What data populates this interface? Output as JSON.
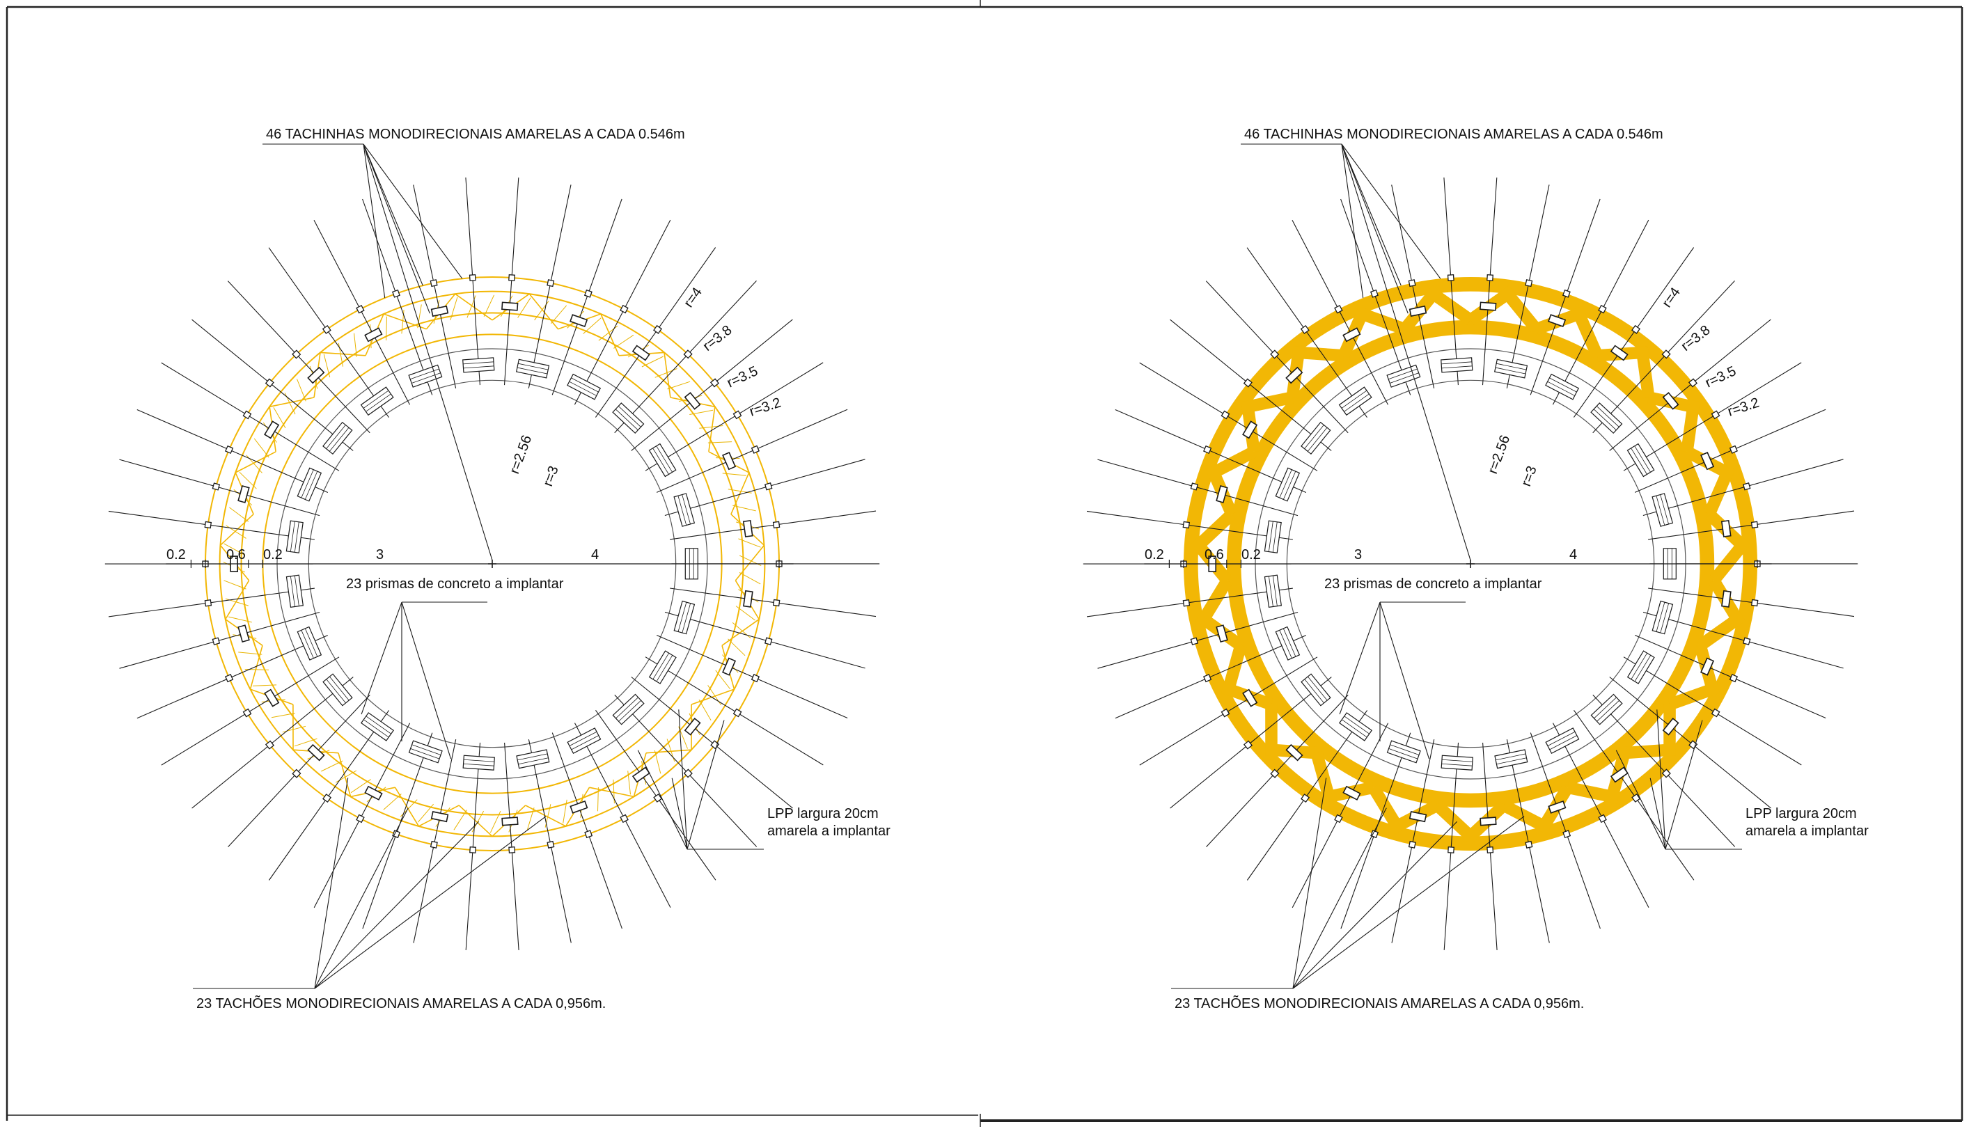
{
  "colors": {
    "marking": "#f2b705",
    "marking_light": "#e8b400",
    "line": "#1a1a1a",
    "frame": "#222222"
  },
  "panels": [
    {
      "variant": "outline",
      "labels": {
        "tachinhas": "46 TACHINHAS MONODIRECIONAIS AMARELAS A CADA 0.546m",
        "prismas": "23 prismas de concreto a implantar",
        "lpp_line1": "LPP largura 20cm",
        "lpp_line2": "amarela a implantar",
        "tachoes": "23 TACHÕES MONODIRECIONAIS AMARELAS A CADA  0,956m."
      },
      "radii_labels": [
        "r=4",
        "r=3.8",
        "r=3.5",
        "r=3.2",
        "r=2.56",
        "r=3"
      ],
      "dims": [
        "0.2",
        "0.6",
        "0.2",
        "3",
        "4"
      ]
    },
    {
      "variant": "filled",
      "labels": {
        "tachinhas": "46 TACHINHAS MONODIRECIONAIS AMARELAS A CADA 0.546m",
        "prismas": "23 prismas de concreto a implantar",
        "lpp_line1": "LPP largura 20cm",
        "lpp_line2": "amarela a implantar",
        "tachoes": "23 TACHÕES MONODIRECIONAIS AMARELAS A CADA  0,956m."
      },
      "radii_labels": [
        "r=4",
        "r=3.8",
        "r=3.5",
        "r=3.2",
        "r=2.56",
        "r=3"
      ],
      "dims": [
        "0.2",
        "0.6",
        "0.2",
        "3",
        "4"
      ]
    }
  ]
}
